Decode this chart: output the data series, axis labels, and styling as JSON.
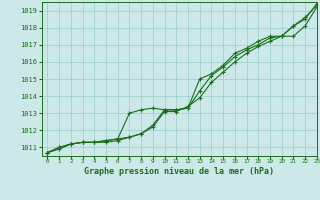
{
  "xlabel": "Graphe pression niveau de la mer (hPa)",
  "xlim": [
    -0.5,
    23
  ],
  "ylim": [
    1010.5,
    1019.5
  ],
  "yticks": [
    1011,
    1012,
    1013,
    1014,
    1015,
    1016,
    1017,
    1018,
    1019
  ],
  "xticks": [
    0,
    1,
    2,
    3,
    4,
    5,
    6,
    7,
    8,
    9,
    10,
    11,
    12,
    13,
    14,
    15,
    16,
    17,
    18,
    19,
    20,
    21,
    22,
    23
  ],
  "background_color": "#cce8e8",
  "grid_color": "#99cccc",
  "line_color": "#1a6e1a",
  "line1": [
    1010.7,
    1010.9,
    1011.2,
    1011.3,
    1011.3,
    1011.3,
    1011.4,
    1011.6,
    1011.8,
    1012.2,
    1013.1,
    1013.1,
    1013.4,
    1013.9,
    1014.8,
    1015.4,
    1016.0,
    1016.5,
    1016.9,
    1017.2,
    1017.5,
    1017.5,
    1018.1,
    1019.2
  ],
  "line2": [
    1010.7,
    1011.0,
    1011.2,
    1011.3,
    1011.3,
    1011.4,
    1011.5,
    1011.6,
    1011.8,
    1012.3,
    1013.2,
    1013.2,
    1013.3,
    1014.3,
    1015.2,
    1015.7,
    1016.3,
    1016.7,
    1017.0,
    1017.4,
    1017.5,
    1018.1,
    1018.5,
    1019.4
  ],
  "line3": [
    1010.7,
    1011.0,
    1011.2,
    1011.3,
    1011.3,
    1011.4,
    1011.5,
    1013.0,
    1013.2,
    1013.3,
    1013.2,
    1013.2,
    1013.3,
    1015.0,
    1015.3,
    1015.8,
    1016.5,
    1016.8,
    1017.2,
    1017.5,
    1017.5,
    1018.1,
    1018.6,
    1019.3
  ]
}
